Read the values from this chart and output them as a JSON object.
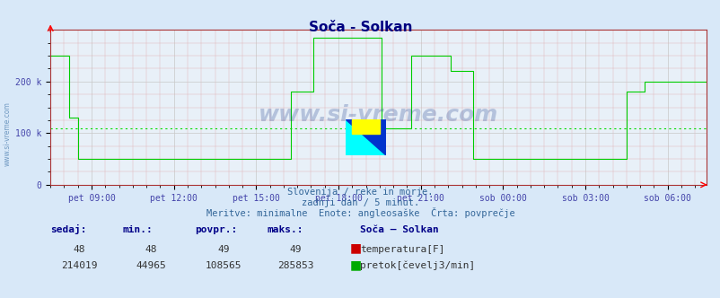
{
  "title": "Soča - Solkan",
  "bg_color": "#d8e8f8",
  "plot_bg_color": "#e8f0f8",
  "grid_color_major": "#c8c8c8",
  "grid_color_minor": "#e0b0b0",
  "line_color": "#00cc00",
  "avg_line_color": "#00dd00",
  "avg_line_style": "dotted",
  "avg_value": 108565,
  "ymax": 285853,
  "ylim": [
    0,
    300000
  ],
  "yticks": [
    0,
    100000,
    200000
  ],
  "ytick_labels": [
    "0",
    "100 k",
    "200 k"
  ],
  "xlabel_color": "#4444aa",
  "title_color": "#000080",
  "watermark": "www.si-vreme.com",
  "watermark_color": "#1a3a8a",
  "watermark_alpha": 0.25,
  "x_labels": [
    "pet 09:00",
    "pet 12:00",
    "pet 15:00",
    "pet 18:00",
    "pet 21:00",
    "sob 00:00",
    "sob 03:00",
    "sob 06:00"
  ],
  "subtitle1": "Slovenija / reke in morje.",
  "subtitle2": "zadnji dan / 5 minut.",
  "subtitle3": "Meritve: minimalne  Enote: angleosaške  Črta: povprečje",
  "table_headers": [
    "sedaj:",
    "min.:",
    "povpr.:",
    "maks.:"
  ],
  "table_row1": [
    "48",
    "48",
    "49",
    "49"
  ],
  "table_row2": [
    "214019",
    "44965",
    "108565",
    "285853"
  ],
  "legend_title": "Soča – Solkan",
  "legend1_label": "temperatura[F]",
  "legend1_color": "#cc0000",
  "legend2_label": "pretok[čevelj3/min]",
  "legend2_color": "#00aa00",
  "sidebar_text": "www.si-vreme.com",
  "sidebar_color": "#4477aa"
}
